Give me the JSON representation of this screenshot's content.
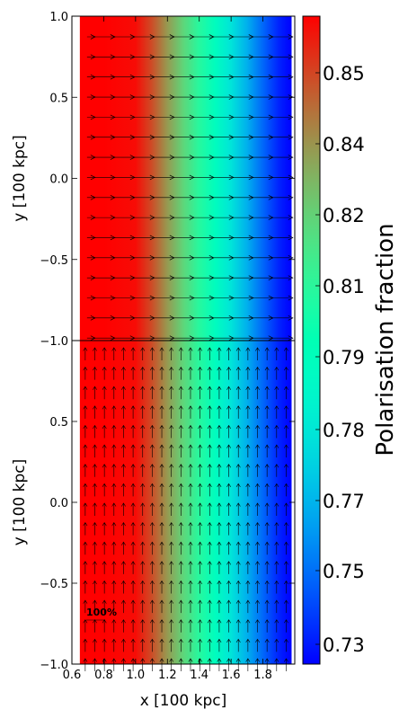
{
  "chart_data": {
    "type": "heatmap",
    "colormap": "rainbow",
    "panels": [
      {
        "name": "top",
        "vector_direction": "right",
        "ylabel": "y [100 kpc]",
        "ylim": [
          -1.0,
          1.0
        ],
        "yticks": [
          1.0,
          0.5,
          0.0,
          -0.5,
          -1.0
        ],
        "yticklabels": [
          "1.0",
          "0.5",
          "0.0",
          "−0.5",
          "−1.0"
        ]
      },
      {
        "name": "bottom",
        "vector_direction": "up",
        "ylabel": "y [100 kpc]",
        "ylim": [
          -1.0,
          1.0
        ],
        "yticks": [
          0.5,
          0.0,
          -0.5,
          -1.0
        ],
        "yticklabels": [
          "0.5",
          "0.0",
          "−0.5",
          "−1.0"
        ],
        "xlabel": "x [100 kpc]",
        "xlim": [
          0.6,
          2.0
        ],
        "xticks": [
          0.6,
          0.8,
          1.0,
          1.2,
          1.4,
          1.6,
          1.8
        ],
        "xticklabels": [
          "0.6",
          "0.8",
          "1.0",
          "1.2",
          "1.4",
          "1.6",
          "1.8"
        ],
        "key_label": "100%"
      }
    ],
    "colorbar": {
      "label": "Polarisation fraction",
      "ticks": [
        0.73,
        0.75,
        0.77,
        0.78,
        0.79,
        0.81,
        0.82,
        0.84,
        0.85
      ],
      "ticklabels": [
        "0.73",
        "0.75",
        "0.77",
        "0.78",
        "0.79",
        "0.81",
        "0.82",
        "0.84",
        "0.85"
      ],
      "range": [
        0.722,
        0.858
      ]
    },
    "polarisation_profile": {
      "x": [
        0.65,
        0.8,
        1.0,
        1.1,
        1.2,
        1.3,
        1.4,
        1.5,
        1.6,
        1.7,
        1.8,
        1.9,
        1.98
      ],
      "value": [
        0.858,
        0.858,
        0.856,
        0.845,
        0.83,
        0.815,
        0.8,
        0.785,
        0.77,
        0.755,
        0.74,
        0.728,
        0.722
      ]
    }
  }
}
